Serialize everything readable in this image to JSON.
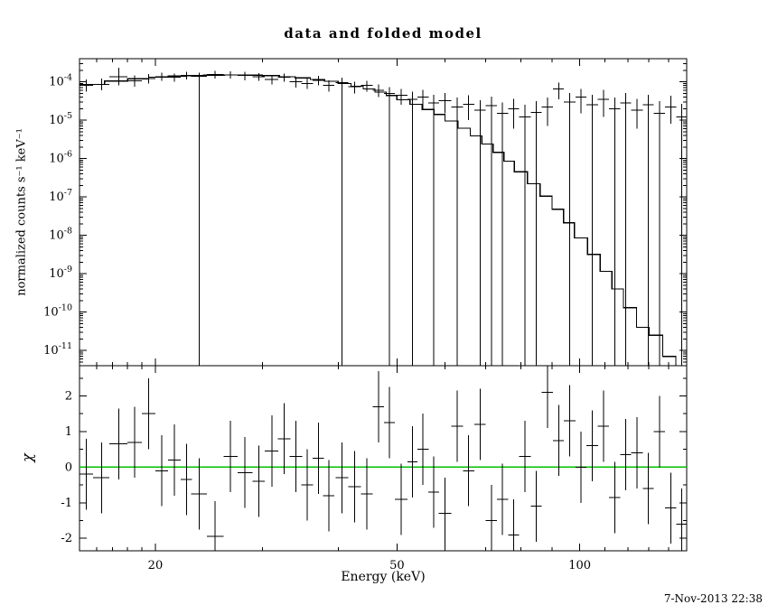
{
  "title": "data and folded model",
  "timestamp": "7-Nov-2013 22:38",
  "colors": {
    "foreground": "#000000",
    "background": "#ffffff",
    "zero_line": "#00c000"
  },
  "chart_data": {
    "type": "line",
    "title": "data and folded model",
    "xlabel": "Energy (keV)",
    "xscale": "log",
    "xlim": [
      15,
      150
    ],
    "x_major_ticks": [
      20,
      50,
      100
    ],
    "x_minor_ticks": [
      16,
      17,
      18,
      19,
      30,
      40,
      60,
      70,
      80,
      90,
      110,
      120,
      130,
      140
    ],
    "panels": [
      {
        "name": "spectrum",
        "ylabel": "normalized counts s⁻¹ keV⁻¹",
        "yscale": "log",
        "ylim": [
          4e-12,
          0.0004
        ],
        "y_major_tick_exponents": [
          -11,
          -10,
          -9,
          -8,
          -7,
          -6,
          -5,
          -4
        ],
        "model_step": {
          "edges": [
            15,
            16.5,
            18,
            19.5,
            21,
            22.5,
            24,
            26,
            28,
            30,
            32,
            34,
            36,
            38,
            40,
            42,
            44,
            46,
            48,
            50,
            52.5,
            55,
            57.5,
            60,
            63,
            66,
            69,
            72,
            75,
            78,
            82,
            86,
            90,
            94,
            98,
            103,
            108,
            113,
            118,
            124,
            130,
            137,
            144,
            150
          ],
          "values": [
            8.5e-05,
            0.000105,
            0.00012,
            0.000132,
            0.00014,
            0.000146,
            0.00015,
            0.000151,
            0.000149,
            0.000144,
            0.000136,
            0.000126,
            0.000115,
            0.000103,
            9e-05,
            7.7e-05,
            6.5e-05,
            5.4e-05,
            4.4e-05,
            3.4e-05,
            2.6e-05,
            1.9e-05,
            1.4e-05,
            9.5e-06,
            6.2e-06,
            3.9e-06,
            2.4e-06,
            1.45e-06,
            8.5e-07,
            4.5e-07,
            2.2e-07,
            1.05e-07,
            4.8e-08,
            2.1e-08,
            8.5e-09,
            3.2e-09,
            1.15e-09,
            4e-10,
            1.3e-10,
            4e-11,
            2.5e-11,
            7e-12,
            1.5e-12
          ]
        },
        "points": [
          [
            15.4,
            0.4,
            8e-05,
            5.5e-05,
            0.000115
          ],
          [
            16.3,
            0.5,
            8.5e-05,
            6e-05,
            0.00012
          ],
          [
            17.4,
            0.6,
            0.000135,
            8e-05,
            0.00023
          ],
          [
            18.5,
            0.5,
            0.000105,
            7.5e-05,
            0.000145
          ],
          [
            19.5,
            0.5,
            0.00012,
            9e-05,
            0.00016
          ],
          [
            20.5,
            0.5,
            0.000135,
            0.000105,
            0.000172
          ],
          [
            21.5,
            0.5,
            0.00013,
            0.0001,
            0.000165
          ],
          [
            22.5,
            0.5,
            0.000145,
            0.000115,
            0.00018
          ],
          [
            23.6,
            0.7,
            0.00014,
            4e-12,
            0.000175
          ],
          [
            25.1,
            0.8,
            0.000155,
            0.00012,
            0.000195
          ],
          [
            26.6,
            0.7,
            0.00015,
            0.00012,
            0.000185
          ],
          [
            28.1,
            0.8,
            0.000145,
            0.00011,
            0.00018
          ],
          [
            29.6,
            0.7,
            0.000135,
            0.000105,
            0.00017
          ],
          [
            31.1,
            0.8,
            0.000115,
            8.5e-05,
            0.00015
          ],
          [
            32.6,
            0.8,
            0.00013,
            0.0001,
            0.000165
          ],
          [
            34.1,
            0.8,
            0.0001,
            7e-05,
            0.000132
          ],
          [
            35.6,
            0.8,
            9e-05,
            6.5e-05,
            0.00012
          ],
          [
            37.1,
            0.8,
            0.00011,
            8e-05,
            0.000142
          ],
          [
            38.6,
            0.8,
            8e-05,
            5.5e-05,
            0.00011
          ],
          [
            40.6,
            1.0,
            9.5e-05,
            4e-12,
            0.000127
          ],
          [
            42.6,
            1.0,
            7.5e-05,
            5e-05,
            0.0001
          ],
          [
            44.6,
            1.0,
            8e-05,
            5.5e-05,
            0.000106
          ],
          [
            46.6,
            1.0,
            6e-05,
            4e-05,
            8.5e-05
          ],
          [
            48.6,
            1.0,
            5e-05,
            4e-12,
            7.2e-05
          ],
          [
            50.8,
            1.2,
            4.5e-05,
            2.5e-05,
            6.6e-05
          ],
          [
            53.0,
            1.0,
            3.5e-05,
            4e-12,
            5.5e-05
          ],
          [
            55.2,
            1.2,
            4e-05,
            2e-05,
            6.2e-05
          ],
          [
            57.5,
            1.2,
            2.8e-05,
            4e-12,
            4.6e-05
          ],
          [
            60.0,
            1.4,
            3.2e-05,
            1.5e-05,
            5.1e-05
          ],
          [
            62.8,
            1.4,
            2.2e-05,
            4e-12,
            3.9e-05
          ],
          [
            65.6,
            1.4,
            2.6e-05,
            1e-05,
            4.4e-05
          ],
          [
            68.5,
            1.5,
            1.8e-05,
            4e-12,
            3.3e-05
          ],
          [
            71.5,
            1.5,
            2.4e-05,
            4e-12,
            4.1e-05
          ],
          [
            74.6,
            1.6,
            1.5e-05,
            4e-12,
            2.9e-05
          ],
          [
            77.8,
            1.6,
            2e-05,
            6e-06,
            3.6e-05
          ],
          [
            81.2,
            1.8,
            1.2e-05,
            4e-12,
            2.5e-05
          ],
          [
            84.8,
            1.8,
            1.6e-05,
            4e-12,
            3.1e-05
          ],
          [
            88.5,
            1.9,
            2.2e-05,
            7e-06,
            3.9e-05
          ],
          [
            92.3,
            1.9,
            6.5e-05,
            3.5e-05,
            9.6e-05
          ],
          [
            96.3,
            2.1,
            3e-05,
            4e-12,
            5.1e-05
          ],
          [
            100.5,
            2.1,
            4e-05,
            1.5e-05,
            6.6e-05
          ],
          [
            104.9,
            2.3,
            2.5e-05,
            4e-12,
            4.6e-05
          ],
          [
            109.4,
            2.3,
            3.5e-05,
            1.2e-05,
            6.1e-05
          ],
          [
            114.2,
            2.5,
            2e-05,
            4e-12,
            3.9e-05
          ],
          [
            119.1,
            2.5,
            2.8e-05,
            4e-12,
            5.1e-05
          ],
          [
            124.3,
            2.7,
            1.8e-05,
            6e-06,
            3.6e-05
          ],
          [
            129.7,
            2.7,
            2.5e-05,
            4e-12,
            4.6e-05
          ],
          [
            135.3,
            2.9,
            1.5e-05,
            4e-12,
            3.1e-05
          ],
          [
            141.2,
            3.0,
            2.2e-05,
            8e-06,
            4.3e-05
          ],
          [
            147.3,
            3.0,
            1.2e-05,
            4e-12,
            2.7e-05
          ]
        ]
      },
      {
        "name": "residuals",
        "ylabel": "χ",
        "yscale": "linear",
        "ylim": [
          -2.35,
          2.85
        ],
        "y_major_ticks": [
          -2,
          -1,
          0,
          1,
          2
        ],
        "zero_line": 0,
        "chi_error": 1,
        "points": [
          [
            15.4,
            0.4,
            -0.2
          ],
          [
            16.3,
            0.5,
            -0.3
          ],
          [
            17.4,
            0.6,
            0.65
          ],
          [
            18.5,
            0.5,
            0.7
          ],
          [
            19.5,
            0.5,
            1.5
          ],
          [
            20.5,
            0.5,
            -0.1
          ],
          [
            21.5,
            0.5,
            0.2
          ],
          [
            22.5,
            0.5,
            -0.35
          ],
          [
            23.6,
            0.7,
            -0.75
          ],
          [
            25.1,
            0.8,
            -1.95
          ],
          [
            26.6,
            0.7,
            0.3
          ],
          [
            28.1,
            0.8,
            -0.15
          ],
          [
            29.6,
            0.7,
            -0.4
          ],
          [
            31.1,
            0.8,
            0.45
          ],
          [
            32.6,
            0.8,
            0.8
          ],
          [
            34.1,
            0.8,
            0.3
          ],
          [
            35.6,
            0.8,
            -0.5
          ],
          [
            37.1,
            0.8,
            0.25
          ],
          [
            38.6,
            0.8,
            -0.8
          ],
          [
            40.6,
            1.0,
            -0.3
          ],
          [
            42.6,
            1.0,
            -0.55
          ],
          [
            44.6,
            1.0,
            -0.75
          ],
          [
            46.6,
            1.0,
            1.7
          ],
          [
            48.6,
            1.0,
            1.25
          ],
          [
            50.8,
            1.2,
            -0.9
          ],
          [
            53.0,
            1.0,
            0.15
          ],
          [
            55.2,
            1.2,
            0.5
          ],
          [
            57.5,
            1.2,
            -0.7
          ],
          [
            60.0,
            1.4,
            -1.3
          ],
          [
            62.8,
            1.4,
            1.15
          ],
          [
            65.6,
            1.4,
            -0.1
          ],
          [
            68.5,
            1.5,
            1.2
          ],
          [
            71.5,
            1.5,
            -1.5
          ],
          [
            74.6,
            1.6,
            -0.9
          ],
          [
            77.8,
            1.6,
            -1.9
          ],
          [
            81.2,
            1.8,
            0.3
          ],
          [
            84.8,
            1.8,
            -1.1
          ],
          [
            88.5,
            1.9,
            2.1
          ],
          [
            92.3,
            1.9,
            0.75
          ],
          [
            96.3,
            2.1,
            1.3
          ],
          [
            100.5,
            2.1,
            0.0
          ],
          [
            104.9,
            2.3,
            0.6
          ],
          [
            109.4,
            2.3,
            1.15
          ],
          [
            114.2,
            2.5,
            -0.85
          ],
          [
            119.1,
            2.5,
            0.35
          ],
          [
            124.3,
            2.7,
            0.4
          ],
          [
            129.7,
            2.7,
            -0.6
          ],
          [
            135.3,
            2.9,
            1.0
          ],
          [
            141.2,
            3.0,
            -1.15
          ],
          [
            147.3,
            3.0,
            -1.6
          ]
        ]
      }
    ]
  }
}
